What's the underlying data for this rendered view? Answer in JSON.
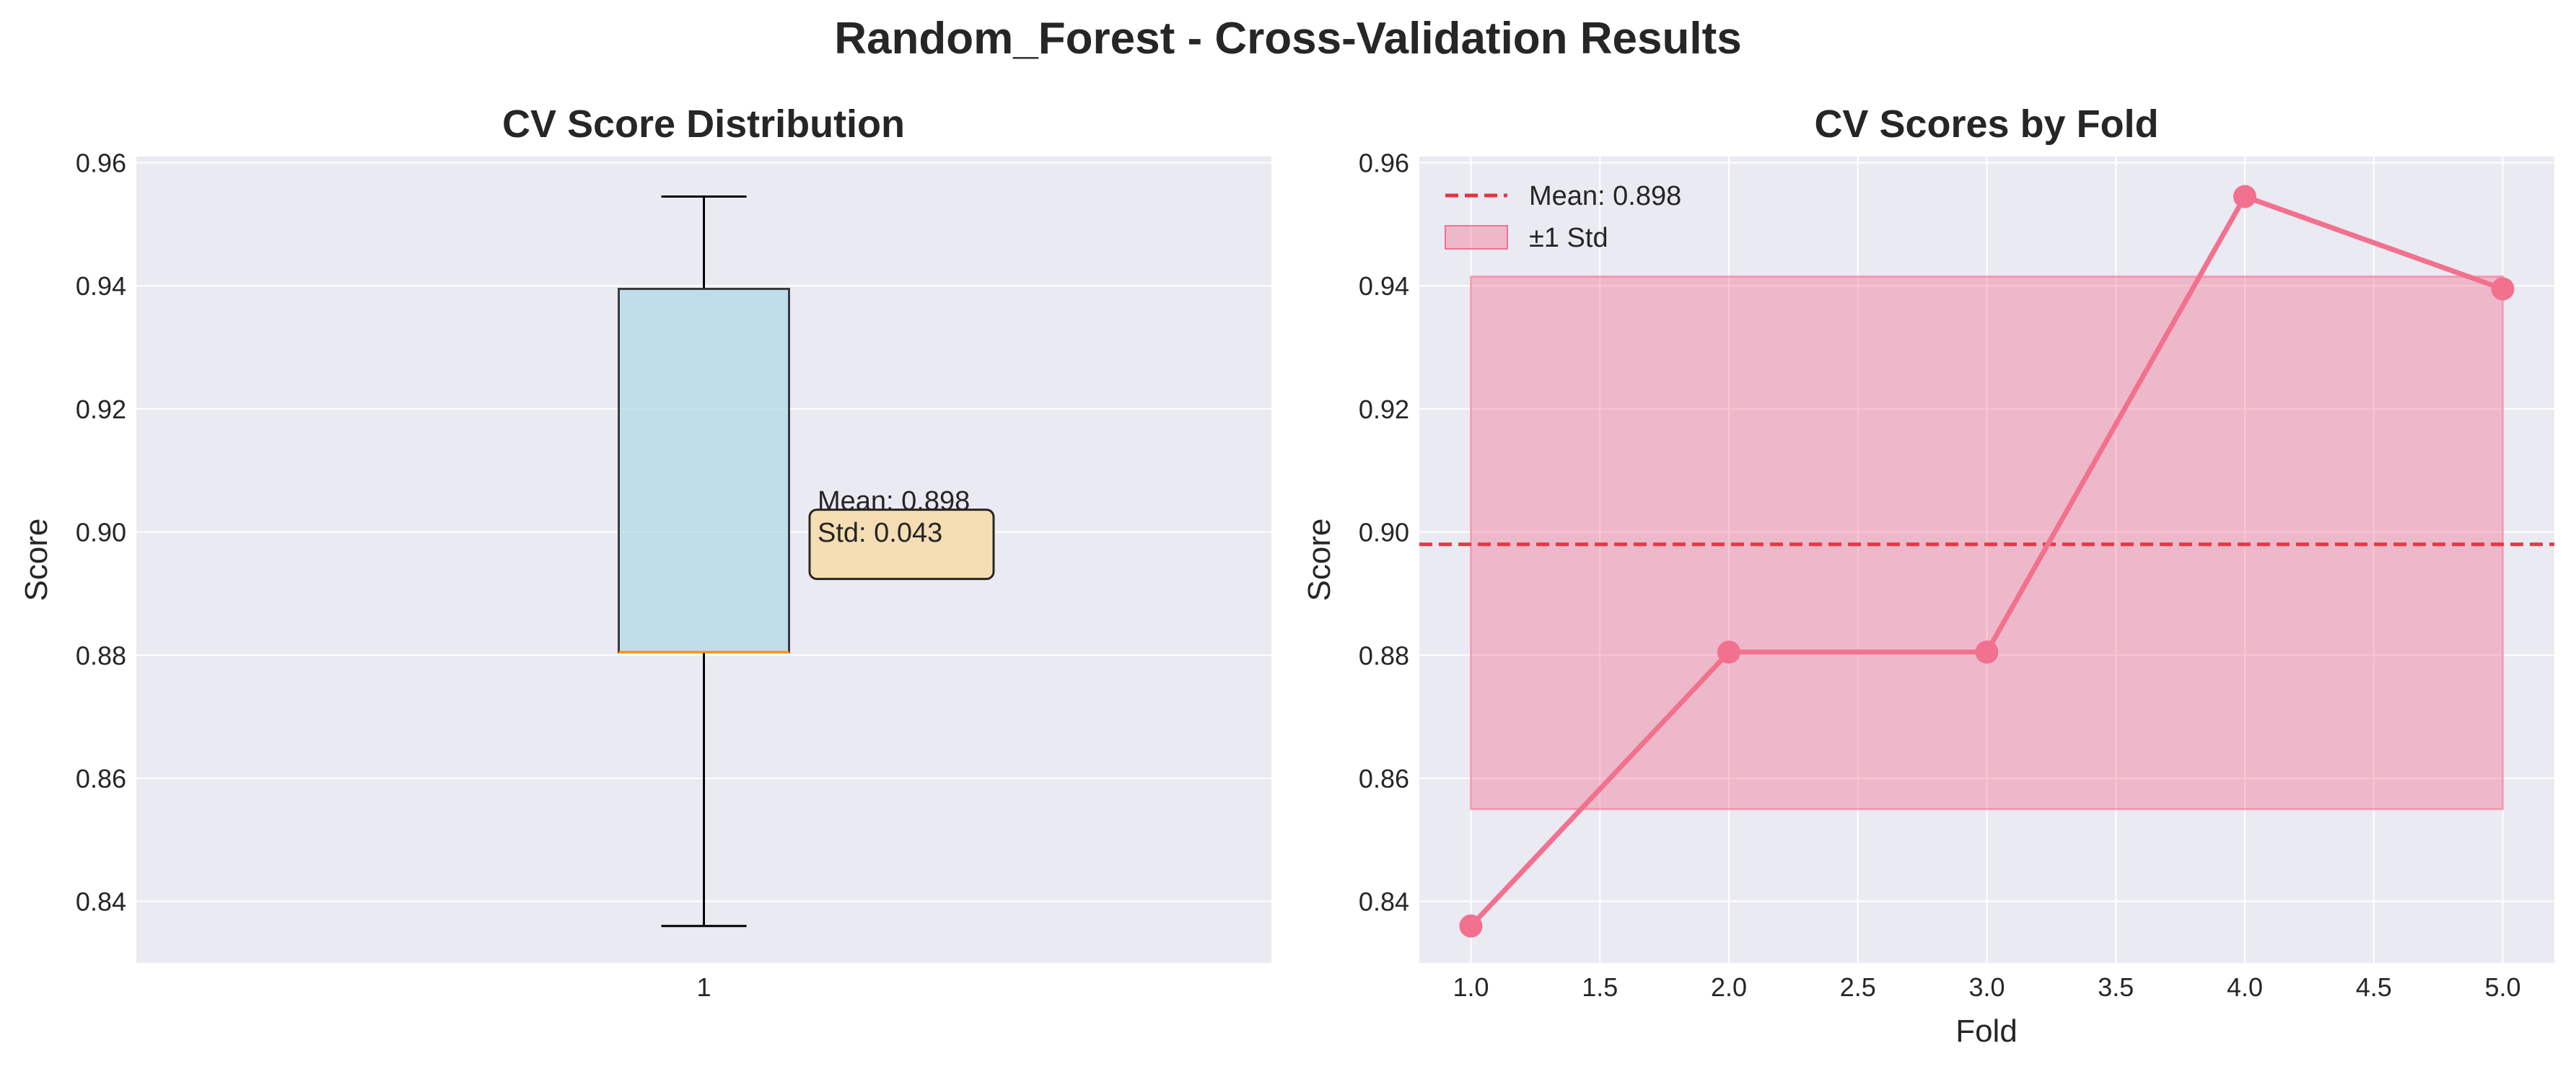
{
  "figure": {
    "title": "Random_Forest - Cross-Validation Results"
  },
  "chart_data": [
    {
      "type": "box",
      "title": "CV Score Distribution",
      "xlabel": "",
      "ylabel": "Score",
      "ylim": [
        0.83,
        0.961
      ],
      "yticks": [
        "0.84",
        "0.86",
        "0.88",
        "0.90",
        "0.92",
        "0.94",
        "0.96"
      ],
      "xtick_labels": [
        "1"
      ],
      "grid": true,
      "box": {
        "whisker_low": 0.836,
        "q1": 0.8805,
        "median": 0.8805,
        "q3": 0.9395,
        "whisker_high": 0.9545,
        "fill_color": "#add8e6",
        "median_color": "#ff8c00"
      },
      "annotation": {
        "lines": [
          "Mean: 0.898",
          "Std: 0.043"
        ],
        "value_y": 0.898,
        "fill_color": "#f5deb3"
      }
    },
    {
      "type": "line",
      "title": "CV Scores by Fold",
      "xlabel": "Fold",
      "ylabel": "Score",
      "xlim": [
        0.8,
        5.2
      ],
      "ylim": [
        0.83,
        0.961
      ],
      "xticks": [
        "1.0",
        "1.5",
        "2.0",
        "2.5",
        "3.0",
        "3.5",
        "4.0",
        "4.5",
        "5.0"
      ],
      "yticks": [
        "0.84",
        "0.86",
        "0.88",
        "0.90",
        "0.92",
        "0.94",
        "0.96"
      ],
      "grid": true,
      "series": [
        {
          "x": [
            1,
            2,
            3,
            4,
            5
          ],
          "values": [
            0.836,
            0.8805,
            0.8805,
            0.9545,
            0.9395
          ],
          "color": "#f2718e"
        }
      ],
      "mean_line": {
        "value": 0.898,
        "label": "Mean: 0.898",
        "color": "#e8323c"
      },
      "std_band": {
        "x_range": [
          1,
          5
        ],
        "low": 0.855,
        "high": 0.9415,
        "label": "±1 Std",
        "color": "#f2718e"
      },
      "legend": {
        "position": "top-left"
      }
    }
  ]
}
